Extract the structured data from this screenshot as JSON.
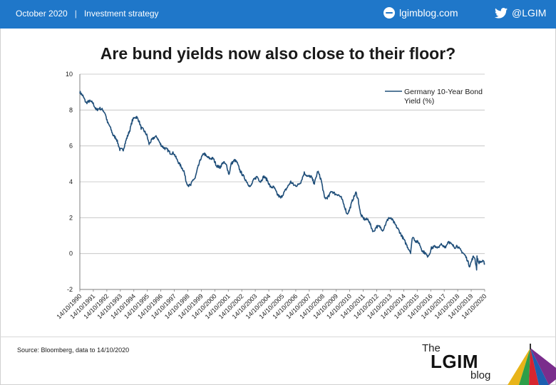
{
  "header": {
    "date": "October 2020",
    "separator": "|",
    "section": "Investment strategy",
    "site": "lgimblog.com",
    "twitter": "@LGIM",
    "icons": [
      "globe-icon",
      "twitter-icon"
    ],
    "color": "#1f77c9"
  },
  "title": "Are bund yields now also close to their floor?",
  "footer": {
    "source": "Source: Bloomberg, data to 14/10/2020",
    "logo": {
      "the": "The",
      "main": "LGIM",
      "blog": "blog"
    }
  },
  "chart_data": {
    "type": "line",
    "title": "Are bund yields now also close to their floor?",
    "xlabel": "",
    "ylabel": "",
    "ylim": [
      -2,
      10
    ],
    "yticks": [
      -2,
      0,
      2,
      4,
      6,
      8,
      10
    ],
    "xticks": [
      "14/10/1990",
      "14/10/1991",
      "14/10/1992",
      "14/10/1993",
      "14/10/1994",
      "14/10/1995",
      "14/10/1996",
      "14/10/1997",
      "14/10/1998",
      "14/10/1999",
      "14/10/2000",
      "14/10/2001",
      "14/10/2002",
      "14/10/2003",
      "14/10/2004",
      "14/10/2005",
      "14/10/2006",
      "14/10/2007",
      "14/10/2008",
      "14/10/2009",
      "14/10/2010",
      "14/10/2011",
      "14/10/2012",
      "14/10/2013",
      "14/10/2014",
      "14/10/2015",
      "14/10/2016",
      "14/10/2017",
      "14/10/2018",
      "14/10/2019",
      "14/10/2020"
    ],
    "grid": true,
    "legend_position": "top-right",
    "line_color": "#1f4e79",
    "series": [
      {
        "name": "Germany 10-Year Bond Yield (%)",
        "points": [
          [
            "1990-10-14",
            9.0
          ],
          [
            "1991-01-01",
            8.8
          ],
          [
            "1991-04-01",
            8.4
          ],
          [
            "1991-07-01",
            8.5
          ],
          [
            "1991-10-01",
            8.4
          ],
          [
            "1992-01-01",
            8.0
          ],
          [
            "1992-04-01",
            8.1
          ],
          [
            "1992-07-01",
            8.0
          ],
          [
            "1992-09-01",
            7.8
          ],
          [
            "1992-11-01",
            7.3
          ],
          [
            "1993-01-01",
            7.1
          ],
          [
            "1993-04-01",
            6.6
          ],
          [
            "1993-07-01",
            6.4
          ],
          [
            "1993-10-01",
            5.8
          ],
          [
            "1994-01-01",
            5.8
          ],
          [
            "1994-04-01",
            6.4
          ],
          [
            "1994-07-01",
            6.9
          ],
          [
            "1994-09-01",
            7.4
          ],
          [
            "1994-11-01",
            7.6
          ],
          [
            "1995-01-01",
            7.6
          ],
          [
            "1995-03-01",
            7.4
          ],
          [
            "1995-05-01",
            7.0
          ],
          [
            "1995-07-01",
            6.9
          ],
          [
            "1995-10-01",
            6.6
          ],
          [
            "1995-12-01",
            6.1
          ],
          [
            "1996-02-01",
            6.3
          ],
          [
            "1996-05-01",
            6.5
          ],
          [
            "1996-07-01",
            6.5
          ],
          [
            "1996-10-01",
            6.1
          ],
          [
            "1997-01-01",
            5.9
          ],
          [
            "1997-04-01",
            5.8
          ],
          [
            "1997-07-01",
            5.6
          ],
          [
            "1997-10-01",
            5.6
          ],
          [
            "1998-01-01",
            5.2
          ],
          [
            "1998-04-01",
            4.9
          ],
          [
            "1998-07-01",
            4.6
          ],
          [
            "1998-09-01",
            4.0
          ],
          [
            "1998-11-01",
            3.8
          ],
          [
            "1999-01-01",
            3.8
          ],
          [
            "1999-03-01",
            4.1
          ],
          [
            "1999-05-01",
            4.2
          ],
          [
            "1999-07-01",
            4.7
          ],
          [
            "1999-10-01",
            5.3
          ],
          [
            "2000-01-01",
            5.6
          ],
          [
            "2000-03-01",
            5.4
          ],
          [
            "2000-06-01",
            5.3
          ],
          [
            "2000-09-01",
            5.3
          ],
          [
            "2000-12-01",
            4.9
          ],
          [
            "2001-03-01",
            4.8
          ],
          [
            "2001-06-01",
            5.1
          ],
          [
            "2001-09-01",
            4.9
          ],
          [
            "2001-11-01",
            4.4
          ],
          [
            "2002-01-01",
            5.0
          ],
          [
            "2002-04-01",
            5.2
          ],
          [
            "2002-06-01",
            5.1
          ],
          [
            "2002-09-01",
            4.6
          ],
          [
            "2002-12-01",
            4.3
          ],
          [
            "2003-03-01",
            4.0
          ],
          [
            "2003-06-01",
            3.7
          ],
          [
            "2003-09-01",
            4.1
          ],
          [
            "2003-12-01",
            4.3
          ],
          [
            "2004-03-01",
            4.0
          ],
          [
            "2004-06-01",
            4.3
          ],
          [
            "2004-09-01",
            4.1
          ],
          [
            "2004-12-01",
            3.7
          ],
          [
            "2005-03-01",
            3.7
          ],
          [
            "2005-06-01",
            3.3
          ],
          [
            "2005-09-01",
            3.1
          ],
          [
            "2005-12-01",
            3.4
          ],
          [
            "2006-03-01",
            3.7
          ],
          [
            "2006-06-01",
            4.0
          ],
          [
            "2006-09-01",
            3.8
          ],
          [
            "2006-12-01",
            3.8
          ],
          [
            "2007-03-01",
            4.0
          ],
          [
            "2007-06-01",
            4.5
          ],
          [
            "2007-09-01",
            4.3
          ],
          [
            "2007-12-01",
            4.3
          ],
          [
            "2008-03-01",
            3.9
          ],
          [
            "2008-06-01",
            4.6
          ],
          [
            "2008-09-01",
            4.1
          ],
          [
            "2008-12-01",
            3.1
          ],
          [
            "2009-02-01",
            3.1
          ],
          [
            "2009-04-01",
            3.2
          ],
          [
            "2009-06-01",
            3.5
          ],
          [
            "2009-08-01",
            3.4
          ],
          [
            "2009-10-01",
            3.3
          ],
          [
            "2009-12-01",
            3.3
          ],
          [
            "2010-03-01",
            3.1
          ],
          [
            "2010-06-01",
            2.6
          ],
          [
            "2010-08-01",
            2.2
          ],
          [
            "2010-10-01",
            2.4
          ],
          [
            "2011-01-01",
            3.0
          ],
          [
            "2011-04-01",
            3.4
          ],
          [
            "2011-06-01",
            3.0
          ],
          [
            "2011-08-01",
            2.2
          ],
          [
            "2011-10-01",
            2.0
          ],
          [
            "2011-12-01",
            1.9
          ],
          [
            "2012-03-01",
            1.9
          ],
          [
            "2012-06-01",
            1.4
          ],
          [
            "2012-07-20",
            1.2
          ],
          [
            "2012-10-01",
            1.5
          ],
          [
            "2013-01-01",
            1.5
          ],
          [
            "2013-04-01",
            1.3
          ],
          [
            "2013-06-01",
            1.6
          ],
          [
            "2013-09-01",
            2.0
          ],
          [
            "2013-12-01",
            1.9
          ],
          [
            "2014-03-01",
            1.6
          ],
          [
            "2014-06-01",
            1.3
          ],
          [
            "2014-09-01",
            0.95
          ],
          [
            "2014-12-01",
            0.6
          ],
          [
            "2015-02-01",
            0.35
          ],
          [
            "2015-04-17",
            0.08
          ],
          [
            "2015-06-10",
            0.95
          ],
          [
            "2015-09-01",
            0.7
          ],
          [
            "2015-12-01",
            0.6
          ],
          [
            "2016-03-01",
            0.15
          ],
          [
            "2016-06-01",
            0.0
          ],
          [
            "2016-07-08",
            -0.15
          ],
          [
            "2016-09-01",
            -0.05
          ],
          [
            "2016-11-01",
            0.3
          ],
          [
            "2016-12-15",
            0.35
          ],
          [
            "2017-03-01",
            0.4
          ],
          [
            "2017-06-01",
            0.3
          ],
          [
            "2017-07-01",
            0.55
          ],
          [
            "2017-09-01",
            0.4
          ],
          [
            "2017-12-01",
            0.4
          ],
          [
            "2018-02-01",
            0.7
          ],
          [
            "2018-05-01",
            0.5
          ],
          [
            "2018-08-01",
            0.35
          ],
          [
            "2018-10-01",
            0.45
          ],
          [
            "2018-12-01",
            0.25
          ],
          [
            "2019-03-01",
            0.05
          ],
          [
            "2019-05-01",
            -0.1
          ],
          [
            "2019-07-01",
            -0.35
          ],
          [
            "2019-08-28",
            -0.7
          ],
          [
            "2019-10-01",
            -0.55
          ],
          [
            "2019-12-01",
            -0.2
          ],
          [
            "2020-01-15",
            -0.2
          ],
          [
            "2020-03-09",
            -0.85
          ],
          [
            "2020-03-19",
            -0.2
          ],
          [
            "2020-05-01",
            -0.5
          ],
          [
            "2020-07-01",
            -0.45
          ],
          [
            "2020-09-01",
            -0.45
          ],
          [
            "2020-10-14",
            -0.55
          ]
        ]
      }
    ]
  }
}
